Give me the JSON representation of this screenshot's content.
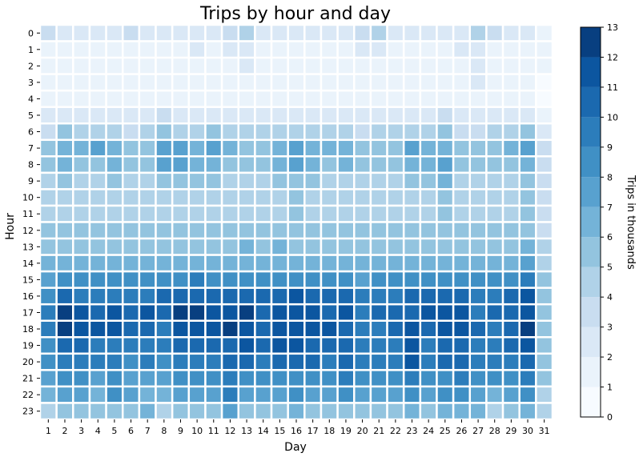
{
  "chart_data": {
    "type": "heatmap",
    "title": "Trips by hour and day",
    "xlabel": "Day",
    "ylabel": "Hour",
    "x_categories": [
      "1",
      "2",
      "3",
      "4",
      "5",
      "6",
      "7",
      "8",
      "9",
      "10",
      "11",
      "12",
      "13",
      "14",
      "15",
      "16",
      "17",
      "18",
      "19",
      "20",
      "21",
      "22",
      "23",
      "24",
      "25",
      "26",
      "27",
      "28",
      "29",
      "30",
      "31"
    ],
    "y_categories": [
      "0",
      "1",
      "2",
      "3",
      "4",
      "5",
      "6",
      "7",
      "8",
      "9",
      "10",
      "11",
      "12",
      "13",
      "14",
      "15",
      "16",
      "17",
      "18",
      "19",
      "20",
      "21",
      "22",
      "23"
    ],
    "colorbar": {
      "label": "Trips in thousands",
      "range": [
        0,
        13
      ],
      "ticks": [
        0,
        1,
        2,
        3,
        4,
        5,
        6,
        7,
        8,
        9,
        10,
        11,
        12,
        13
      ],
      "colors": [
        "#f7fbff",
        "#eaf3fb",
        "#dae8f6",
        "#c9ddf0",
        "#b0d2e8",
        "#93c4df",
        "#74b3d8",
        "#58a1cf",
        "#4090c5",
        "#2c7dbb",
        "#1b69af",
        "#0c56a0",
        "#083f80"
      ]
    },
    "grid": false,
    "legend": "colorbar-right",
    "values": [
      [
        3,
        2,
        2,
        2,
        2,
        3,
        2,
        2,
        2,
        2,
        2,
        3,
        4,
        2,
        2,
        2,
        2,
        2,
        2,
        3,
        4,
        2,
        2,
        2,
        2,
        2,
        4,
        3,
        2,
        2,
        1
      ],
      [
        1,
        1,
        1,
        1,
        1,
        1,
        1,
        1,
        1,
        2,
        1,
        2,
        2,
        1,
        1,
        1,
        1,
        1,
        1,
        2,
        2,
        1,
        1,
        1,
        1,
        2,
        2,
        1,
        1,
        1,
        1
      ],
      [
        1,
        1,
        1,
        1,
        1,
        1,
        1,
        1,
        1,
        1,
        1,
        1,
        2,
        1,
        1,
        1,
        1,
        1,
        1,
        1,
        1,
        1,
        1,
        1,
        1,
        1,
        2,
        1,
        1,
        1,
        1
      ],
      [
        1,
        1,
        1,
        1,
        1,
        1,
        1,
        1,
        1,
        1,
        1,
        1,
        1,
        1,
        1,
        1,
        1,
        1,
        1,
        1,
        1,
        1,
        1,
        1,
        1,
        1,
        2,
        1,
        1,
        1,
        0
      ],
      [
        1,
        1,
        1,
        1,
        1,
        1,
        1,
        1,
        1,
        1,
        1,
        1,
        1,
        1,
        1,
        1,
        1,
        1,
        1,
        1,
        1,
        1,
        1,
        1,
        1,
        1,
        1,
        1,
        1,
        1,
        0
      ],
      [
        2,
        2,
        2,
        2,
        2,
        2,
        2,
        3,
        2,
        2,
        2,
        2,
        2,
        2,
        2,
        2,
        2,
        2,
        2,
        2,
        2,
        2,
        2,
        2,
        3,
        2,
        2,
        2,
        2,
        2,
        1
      ],
      [
        3,
        5,
        4,
        4,
        4,
        3,
        4,
        5,
        4,
        4,
        5,
        4,
        4,
        4,
        4,
        4,
        4,
        4,
        4,
        3,
        4,
        4,
        4,
        4,
        5,
        3,
        3,
        4,
        4,
        5,
        2
      ],
      [
        5,
        6,
        6,
        7,
        6,
        5,
        5,
        7,
        7,
        6,
        7,
        6,
        5,
        5,
        6,
        7,
        6,
        6,
        6,
        5,
        5,
        5,
        7,
        6,
        6,
        5,
        5,
        5,
        6,
        7,
        3
      ],
      [
        5,
        6,
        5,
        5,
        6,
        5,
        5,
        7,
        7,
        6,
        6,
        5,
        5,
        5,
        6,
        7,
        6,
        5,
        6,
        5,
        5,
        5,
        6,
        6,
        7,
        5,
        5,
        5,
        5,
        6,
        3
      ],
      [
        4,
        5,
        4,
        4,
        5,
        4,
        4,
        5,
        5,
        5,
        5,
        4,
        4,
        4,
        5,
        5,
        5,
        4,
        4,
        4,
        4,
        4,
        5,
        5,
        6,
        4,
        4,
        4,
        4,
        5,
        3
      ],
      [
        4,
        4,
        4,
        4,
        4,
        4,
        4,
        4,
        4,
        4,
        4,
        4,
        4,
        4,
        4,
        5,
        4,
        4,
        4,
        4,
        4,
        4,
        4,
        4,
        5,
        4,
        4,
        4,
        4,
        5,
        3
      ],
      [
        4,
        4,
        4,
        4,
        4,
        4,
        4,
        4,
        4,
        4,
        4,
        4,
        4,
        4,
        4,
        5,
        4,
        4,
        4,
        4,
        4,
        4,
        4,
        4,
        5,
        4,
        4,
        4,
        4,
        5,
        3
      ],
      [
        5,
        5,
        5,
        5,
        5,
        5,
        5,
        5,
        5,
        5,
        5,
        5,
        5,
        5,
        5,
        5,
        5,
        5,
        5,
        5,
        5,
        5,
        5,
        5,
        5,
        5,
        5,
        5,
        5,
        5,
        3
      ],
      [
        5,
        5,
        5,
        5,
        5,
        5,
        5,
        5,
        5,
        5,
        5,
        5,
        6,
        5,
        6,
        5,
        5,
        5,
        5,
        5,
        5,
        5,
        5,
        5,
        5,
        5,
        5,
        5,
        5,
        6,
        4
      ],
      [
        6,
        6,
        6,
        6,
        6,
        6,
        6,
        6,
        6,
        6,
        6,
        6,
        6,
        6,
        6,
        6,
        6,
        6,
        6,
        6,
        6,
        6,
        6,
        6,
        6,
        6,
        6,
        6,
        6,
        7,
        4
      ],
      [
        7,
        8,
        8,
        8,
        8,
        8,
        8,
        8,
        8,
        9,
        8,
        8,
        8,
        8,
        8,
        8,
        8,
        8,
        8,
        7,
        8,
        8,
        8,
        8,
        8,
        8,
        8,
        8,
        8,
        9,
        5
      ],
      [
        8,
        10,
        9,
        9,
        9,
        9,
        9,
        10,
        10,
        10,
        10,
        10,
        10,
        10,
        10,
        11,
        10,
        10,
        10,
        9,
        9,
        9,
        10,
        10,
        10,
        10,
        9,
        9,
        10,
        11,
        5
      ],
      [
        9,
        12,
        11,
        10,
        11,
        10,
        11,
        10,
        12,
        12,
        11,
        11,
        12,
        10,
        11,
        11,
        11,
        10,
        11,
        9,
        10,
        10,
        10,
        11,
        11,
        11,
        9,
        10,
        10,
        11,
        5
      ],
      [
        9,
        12,
        11,
        11,
        11,
        10,
        10,
        9,
        11,
        11,
        11,
        13,
        11,
        10,
        11,
        11,
        11,
        11,
        10,
        9,
        9,
        10,
        11,
        10,
        11,
        11,
        10,
        9,
        10,
        12,
        5
      ],
      [
        8,
        10,
        10,
        9,
        9,
        9,
        9,
        9,
        10,
        10,
        10,
        10,
        11,
        10,
        11,
        11,
        10,
        10,
        10,
        9,
        9,
        9,
        11,
        9,
        10,
        10,
        9,
        9,
        10,
        11,
        5
      ],
      [
        8,
        9,
        9,
        9,
        9,
        8,
        9,
        8,
        9,
        9,
        9,
        10,
        10,
        9,
        10,
        10,
        10,
        9,
        10,
        9,
        9,
        9,
        11,
        9,
        10,
        10,
        9,
        9,
        9,
        10,
        5
      ],
      [
        7,
        8,
        8,
        7,
        8,
        7,
        7,
        7,
        8,
        8,
        8,
        9,
        8,
        8,
        8,
        8,
        8,
        8,
        9,
        8,
        8,
        8,
        9,
        8,
        8,
        9,
        8,
        8,
        8,
        9,
        5
      ],
      [
        6,
        7,
        7,
        6,
        8,
        7,
        6,
        6,
        7,
        7,
        7,
        9,
        7,
        7,
        7,
        8,
        7,
        7,
        8,
        7,
        7,
        7,
        8,
        7,
        8,
        8,
        7,
        6,
        7,
        8,
        4
      ],
      [
        4,
        5,
        5,
        5,
        5,
        5,
        6,
        4,
        5,
        5,
        5,
        7,
        5,
        5,
        5,
        6,
        5,
        5,
        5,
        5,
        5,
        5,
        6,
        5,
        6,
        6,
        6,
        4,
        5,
        6,
        4
      ]
    ]
  }
}
